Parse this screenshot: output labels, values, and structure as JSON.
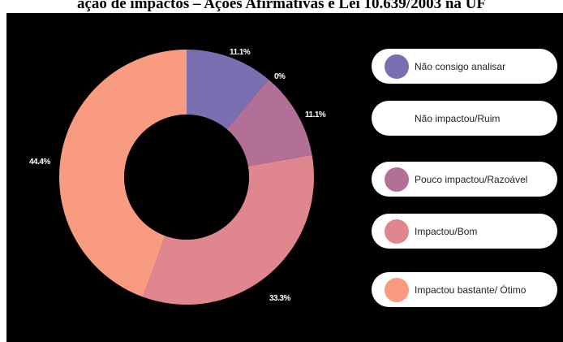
{
  "page_title": "ação de impactos – Ações Afirmativas e Lei 10.639/2003 na UF",
  "chart_data": {
    "type": "pie",
    "donut": true,
    "categories": [
      "Não consigo analisar",
      "Não impactou/Ruim",
      "Pouco impactou/Razoável",
      "Impactou/Bom",
      "Impactou bastante/ Ótimo"
    ],
    "values": [
      11.1,
      0,
      11.1,
      33.3,
      44.4
    ],
    "value_labels": [
      "11.1%",
      "0%",
      "11.1%",
      "33.3%",
      "44.4%"
    ],
    "colors": [
      "#7a6fb1",
      "#ffffff",
      "#b26f98",
      "#e0868e",
      "#f99b80"
    ],
    "legend_placement": "right"
  }
}
